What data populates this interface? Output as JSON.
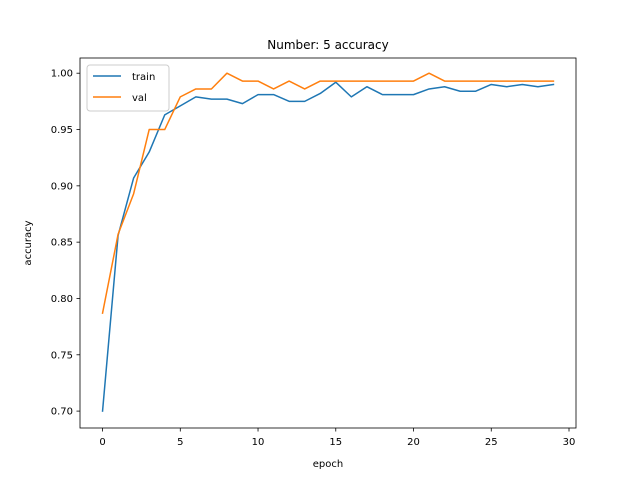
{
  "chart_data": {
    "type": "line",
    "title": "Number: 5 accuracy",
    "xlabel": "epoch",
    "ylabel": "accuracy",
    "xlim": [
      -1.45,
      30.45
    ],
    "ylim": [
      0.685,
      1.0135
    ],
    "xticks": [
      0,
      5,
      10,
      15,
      20,
      25,
      30
    ],
    "yticks": [
      0.7,
      0.75,
      0.8,
      0.85,
      0.9,
      0.95,
      1.0
    ],
    "xtick_labels": [
      "0",
      "5",
      "10",
      "15",
      "20",
      "25",
      "30"
    ],
    "ytick_labels": [
      "0.70",
      "0.75",
      "0.80",
      "0.85",
      "0.90",
      "0.95",
      "1.00"
    ],
    "grid": false,
    "legend_position": "top-left",
    "x": [
      0,
      1,
      2,
      3,
      4,
      5,
      6,
      7,
      8,
      9,
      10,
      11,
      12,
      13,
      14,
      15,
      16,
      17,
      18,
      19,
      20,
      21,
      22,
      23,
      24,
      25,
      26,
      27,
      28,
      29
    ],
    "series": [
      {
        "name": "train",
        "color": "#1f77b4",
        "values": [
          0.7,
          0.856,
          0.907,
          0.93,
          0.963,
          0.971,
          0.979,
          0.977,
          0.977,
          0.973,
          0.981,
          0.981,
          0.975,
          0.975,
          0.982,
          0.992,
          0.979,
          0.988,
          0.981,
          0.981,
          0.981,
          0.986,
          0.988,
          0.984,
          0.984,
          0.99,
          0.988,
          0.99,
          0.988,
          0.99
        ]
      },
      {
        "name": "val",
        "color": "#ff7f0e",
        "values": [
          0.787,
          0.857,
          0.893,
          0.95,
          0.95,
          0.979,
          0.986,
          0.986,
          1.0,
          0.993,
          0.993,
          0.986,
          0.993,
          0.986,
          0.993,
          0.993,
          0.993,
          0.993,
          0.993,
          0.993,
          0.993,
          1.0,
          0.993,
          0.993,
          0.993,
          0.993,
          0.993,
          0.993,
          0.993,
          0.993
        ]
      }
    ]
  }
}
